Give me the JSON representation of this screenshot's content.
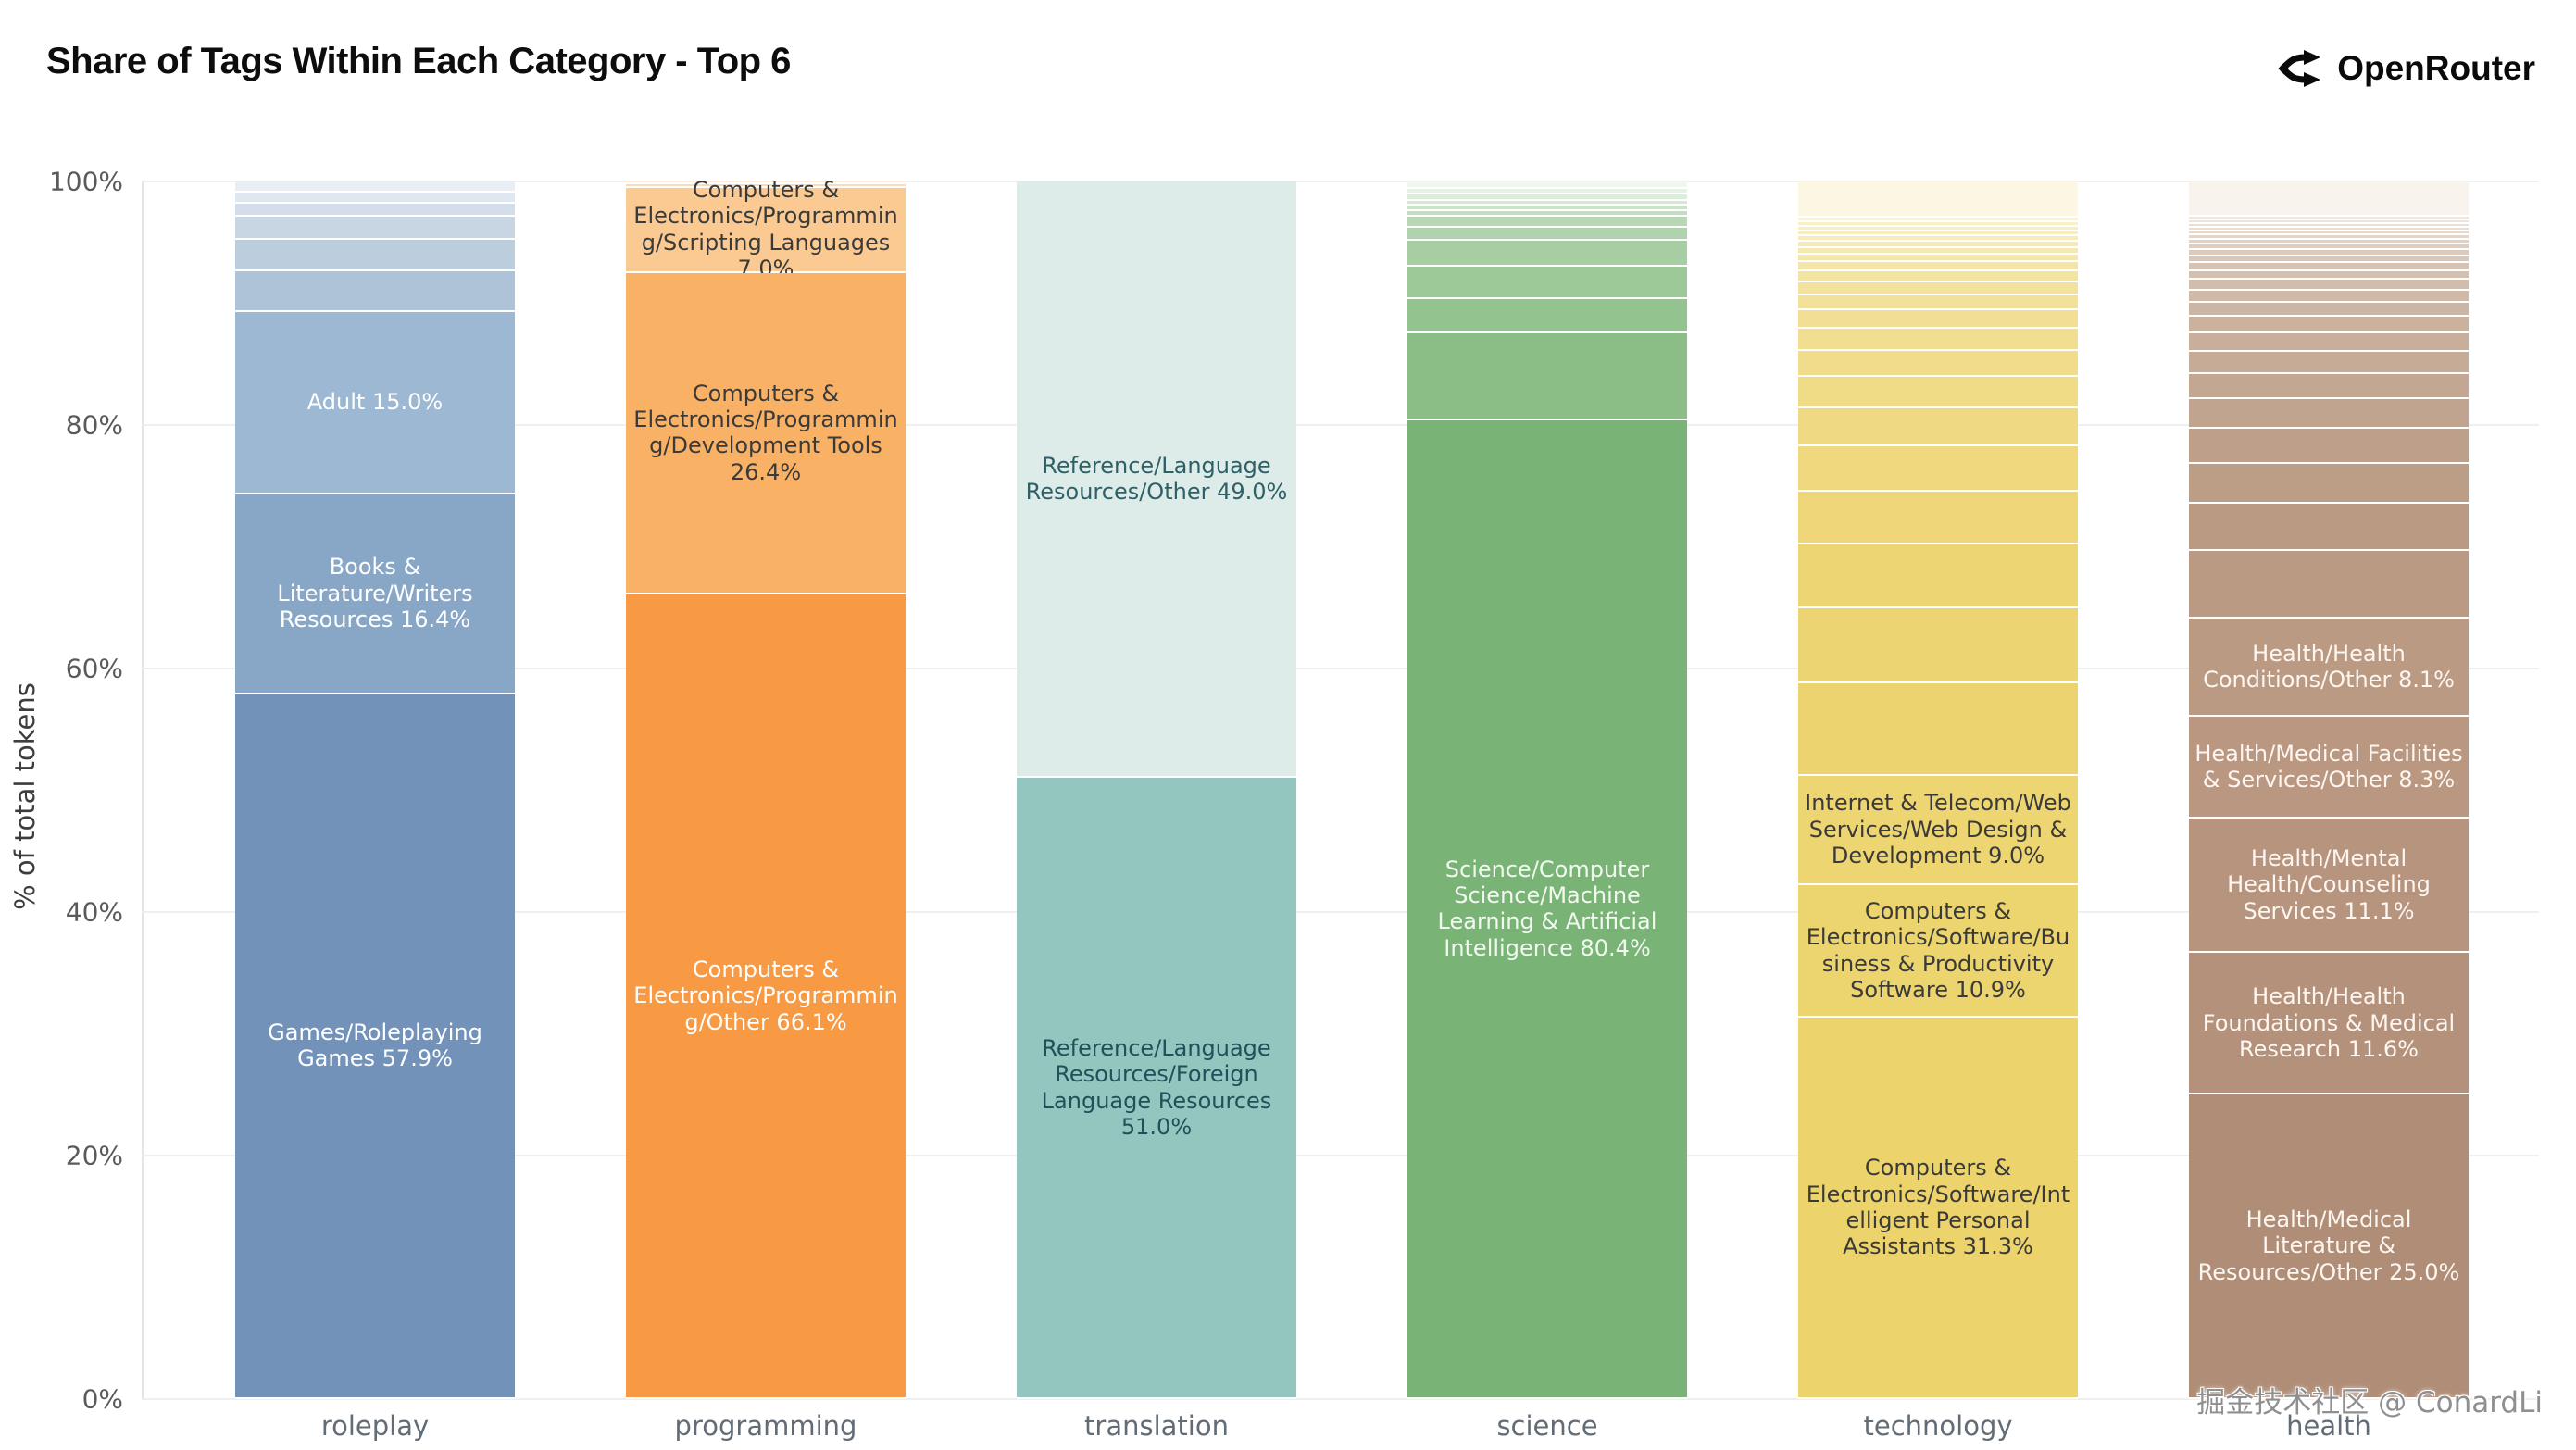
{
  "header": {
    "title": "Share of Tags Within Each Category - Top 6",
    "brand": "OpenRouter"
  },
  "watermark": "掘金技术社区 @ ConardLi",
  "chart_data": {
    "type": "bar",
    "subtype": "stacked-100-percent",
    "title": "Share of Tags Within Each Category - Top 6",
    "xlabel": "",
    "ylabel": "% of total tokens",
    "ylim": [
      0,
      100
    ],
    "grid": true,
    "legend": false,
    "y_ticks": [
      "100%",
      "80%",
      "60%",
      "40%",
      "20%",
      "0%"
    ],
    "categories": [
      "roleplay",
      "programming",
      "translation",
      "science",
      "technology",
      "health"
    ],
    "bars": [
      {
        "category": "roleplay",
        "segments": [
          {
            "value": 0.9,
            "color": "#e9eef5"
          },
          {
            "value": 0.9,
            "color": "#dfe7f1"
          },
          {
            "value": 1.1,
            "color": "#d4deea"
          },
          {
            "value": 1.9,
            "color": "#c8d6e4"
          },
          {
            "value": 2.6,
            "color": "#bccdde"
          },
          {
            "value": 3.3,
            "color": "#afc3d8"
          },
          {
            "label": "Adult 15.0%",
            "value": 15.0,
            "color": "#9db8d2",
            "text_color": "#ffffff"
          },
          {
            "label": "Books & Literature/Writers Resources 16.4%",
            "value": 16.4,
            "color": "#88a7c7",
            "text_color": "#ffffff"
          },
          {
            "label": "Games/Roleplaying Games 57.9%",
            "value": 57.9,
            "color": "#7292b9",
            "text_color": "#ffffff"
          }
        ]
      },
      {
        "category": "programming",
        "segments": [
          {
            "value": 0.2,
            "color": "#fdeedd"
          },
          {
            "value": 0.3,
            "color": "#fcdcb8"
          },
          {
            "label": "Computers & Electronics/Programming/Scripting Languages 7.0%",
            "value": 7.0,
            "color": "#fbca92",
            "text_color": "#3a3a3a"
          },
          {
            "label": "Computers & Electronics/Programming/Development Tools 26.4%",
            "value": 26.4,
            "color": "#f9b166",
            "text_color": "#3a3a3a"
          },
          {
            "label": "Computers & Electronics/Programming/Other 66.1%",
            "value": 66.1,
            "color": "#f79a43",
            "text_color": "#ffffff"
          }
        ]
      },
      {
        "category": "translation",
        "segments": [
          {
            "label": "Reference/Language Resources/Other 49.0%",
            "value": 49.0,
            "color": "#ddece8",
            "text_color": "#2e6068"
          },
          {
            "label": "Reference/Language Resources/Foreign Language Resources 51.0%",
            "value": 51.0,
            "color": "#93c6bf",
            "text_color": "#21505a"
          }
        ]
      },
      {
        "category": "science",
        "segments": [
          {
            "value": 0.6,
            "color": "#f0f7ee"
          },
          {
            "value": 0.5,
            "color": "#e7f2e5"
          },
          {
            "value": 0.5,
            "color": "#ddeddb"
          },
          {
            "value": 0.4,
            "color": "#d4e8d2"
          },
          {
            "value": 0.4,
            "color": "#cbe3c8"
          },
          {
            "value": 0.5,
            "color": "#c2ddbf"
          },
          {
            "value": 0.9,
            "color": "#b8d8b5"
          },
          {
            "value": 1.1,
            "color": "#afd3ac"
          },
          {
            "value": 2.1,
            "color": "#a6cea2"
          },
          {
            "value": 2.7,
            "color": "#9dc999"
          },
          {
            "value": 2.8,
            "color": "#93c38f"
          },
          {
            "value": 7.1,
            "color": "#8abe86"
          },
          {
            "label": "Science/Computer Science/Machine Learning & Artificial Intelligence 80.4%",
            "value": 80.4,
            "color": "#79b376",
            "text_color": "#f2f9f1"
          }
        ]
      },
      {
        "category": "technology",
        "segments": [
          {
            "value": 3.0,
            "color": "#fbf7e3"
          },
          {
            "value": 0.35,
            "color": "#f9f1cb"
          },
          {
            "value": 0.35,
            "color": "#f8f0c7"
          },
          {
            "value": 0.4,
            "color": "#f8eec2"
          },
          {
            "value": 0.4,
            "color": "#f7edbe"
          },
          {
            "value": 0.45,
            "color": "#f7ebb9"
          },
          {
            "value": 0.5,
            "color": "#f6eab5"
          },
          {
            "value": 0.55,
            "color": "#f5e8b0"
          },
          {
            "value": 0.65,
            "color": "#f5e7ab"
          },
          {
            "value": 0.75,
            "color": "#f4e5a7"
          },
          {
            "value": 0.9,
            "color": "#f4e4a2"
          },
          {
            "value": 1.05,
            "color": "#f3e29e"
          },
          {
            "value": 1.25,
            "color": "#f2e199"
          },
          {
            "value": 1.5,
            "color": "#f2df94"
          },
          {
            "value": 1.8,
            "color": "#f1de90"
          },
          {
            "value": 2.15,
            "color": "#f1dc8b"
          },
          {
            "value": 2.6,
            "color": "#f0db87"
          },
          {
            "value": 3.1,
            "color": "#efd982"
          },
          {
            "value": 3.7,
            "color": "#efd87d"
          },
          {
            "value": 4.4,
            "color": "#eed679"
          },
          {
            "value": 5.2,
            "color": "#eed574"
          },
          {
            "value": 6.2,
            "color": "#edd472"
          },
          {
            "value": 7.55,
            "color": "#edd370"
          },
          {
            "label": "Internet & Telecom/Web Services/Web Design & Development 9.0%",
            "value": 9.0,
            "color": "#edd572",
            "text_color": "#3a3a3a"
          },
          {
            "label": "Computers & Electronics/Software/Business & Productivity Software 10.9%",
            "value": 10.9,
            "color": "#ecd46f",
            "text_color": "#3a3a3a"
          },
          {
            "label": "Computers & Electronics/Software/Intelligent Personal Assistants 31.3%",
            "value": 31.3,
            "color": "#ecd36b",
            "text_color": "#3a3a3a"
          }
        ]
      },
      {
        "category": "health",
        "segments": [
          {
            "value": 2.9,
            "color": "#f8f3ed"
          },
          {
            "value": 0.3,
            "color": "#f0e6dd"
          },
          {
            "value": 0.3,
            "color": "#eee3d9"
          },
          {
            "value": 0.3,
            "color": "#ebdfd5"
          },
          {
            "value": 0.3,
            "color": "#e9dcd1"
          },
          {
            "value": 0.35,
            "color": "#e6d8cc"
          },
          {
            "value": 0.35,
            "color": "#e4d5c8"
          },
          {
            "value": 0.4,
            "color": "#e1d1c4"
          },
          {
            "value": 0.45,
            "color": "#dfcec0"
          },
          {
            "value": 0.5,
            "color": "#dccabc"
          },
          {
            "value": 0.55,
            "color": "#dac7b8"
          },
          {
            "value": 0.65,
            "color": "#d7c3b4"
          },
          {
            "value": 0.75,
            "color": "#d5c0b0"
          },
          {
            "value": 0.85,
            "color": "#d2bcab"
          },
          {
            "value": 1.0,
            "color": "#d0b9a7"
          },
          {
            "value": 1.15,
            "color": "#cdb5a3"
          },
          {
            "value": 1.35,
            "color": "#cbb29f"
          },
          {
            "value": 1.55,
            "color": "#c8ae9b"
          },
          {
            "value": 1.8,
            "color": "#c6ab97"
          },
          {
            "value": 2.1,
            "color": "#c3a793"
          },
          {
            "value": 2.45,
            "color": "#c1a48f"
          },
          {
            "value": 2.85,
            "color": "#bea08a"
          },
          {
            "value": 3.3,
            "color": "#bc9d86"
          },
          {
            "value": 3.85,
            "color": "#bb9a84"
          },
          {
            "value": 5.55,
            "color": "#ba9a83"
          },
          {
            "label": "Health/Health Conditions/Other 8.1%",
            "value": 8.1,
            "color": "#bb9a84",
            "text_color": "#fdf6f1"
          },
          {
            "label": "Health/Medical Facilities & Services/Other 8.3%",
            "value": 8.3,
            "color": "#b99781",
            "text_color": "#fdf6f1"
          },
          {
            "label": "Health/Mental Health/Counseling Services 11.1%",
            "value": 11.1,
            "color": "#b6947e",
            "text_color": "#fdf6f1"
          },
          {
            "label": "Health/Health Foundations & Medical Research 11.6%",
            "value": 11.6,
            "color": "#b4917b",
            "text_color": "#fdf6f1"
          },
          {
            "label": "Health/Medical Literature & Resources/Other 25.0%",
            "value": 25.0,
            "color": "#b08d76",
            "text_color": "#fdf6f1"
          }
        ]
      }
    ]
  }
}
